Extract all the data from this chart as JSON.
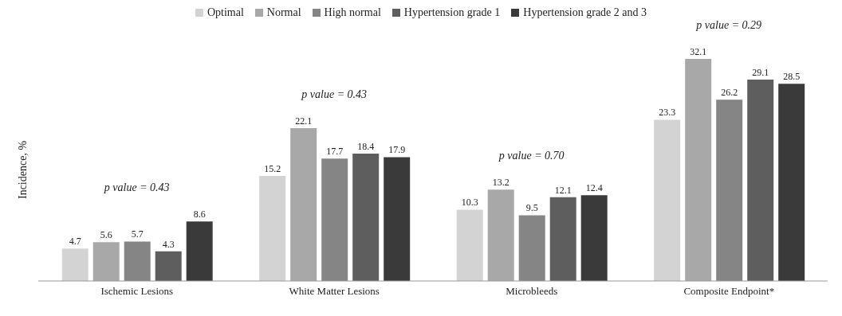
{
  "chart_data": {
    "type": "bar",
    "ylabel": "Incidence, %",
    "categories": [
      "Ischemic Lesions",
      "White Matter Lesions",
      "Microbleeds",
      "Composite Endpoint*"
    ],
    "series": [
      {
        "name": "Optimal",
        "color": "#d3d3d3",
        "values": [
          4.7,
          15.2,
          10.3,
          23.3
        ]
      },
      {
        "name": "Normal",
        "color": "#a8a8a8",
        "values": [
          5.6,
          22.1,
          13.2,
          32.1
        ]
      },
      {
        "name": "High normal",
        "color": "#858585",
        "values": [
          5.7,
          17.7,
          9.5,
          26.2
        ]
      },
      {
        "name": "Hypertension grade 1",
        "color": "#5e5e5e",
        "values": [
          4.3,
          18.4,
          12.1,
          29.1
        ]
      },
      {
        "name": "Hypertension grade 2 and 3",
        "color": "#3a3a3a",
        "values": [
          8.6,
          17.9,
          12.4,
          28.5
        ]
      }
    ],
    "annotations": [
      "p value = 0.43",
      "p value = 0.43",
      "p value = 0.70",
      "p value = 0.29"
    ],
    "data_labels": true,
    "legend": "top",
    "grid": false,
    "tick_labels": "x"
  }
}
